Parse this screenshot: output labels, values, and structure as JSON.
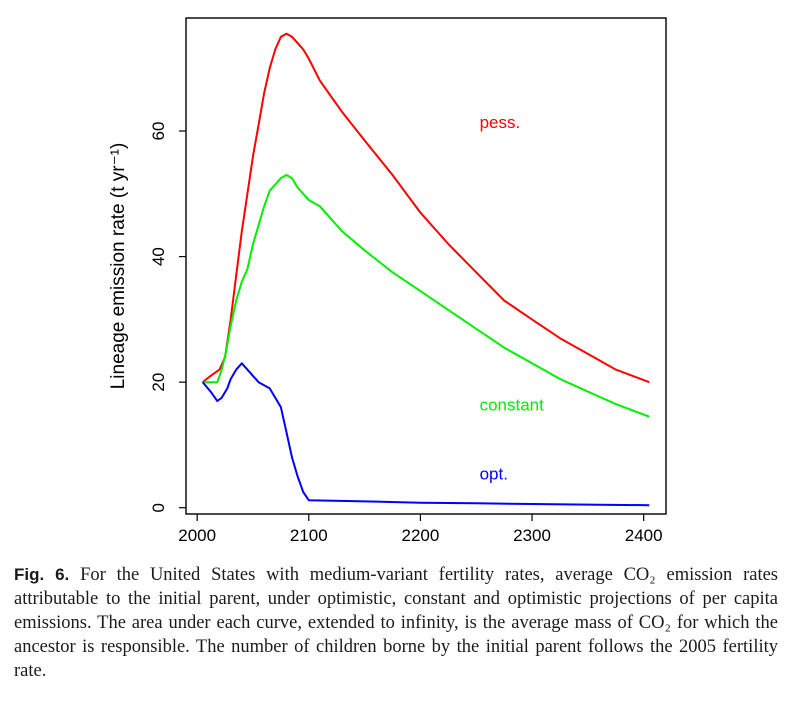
{
  "chart_data": {
    "type": "line",
    "ylabel": "Lineage emission rate (t yr⁻¹)",
    "xlabel": "",
    "xlim": [
      1990,
      2420
    ],
    "ylim": [
      -1,
      78
    ],
    "x_ticks": [
      "2000",
      "2100",
      "2200",
      "2300",
      "2400"
    ],
    "y_ticks": [
      "0",
      "20",
      "40",
      "60"
    ],
    "grid": false,
    "legend": "inline labels",
    "series": [
      {
        "name": "pess.",
        "color": "#ff0000",
        "x": [
          2005,
          2012,
          2020,
          2025,
          2030,
          2035,
          2040,
          2045,
          2050,
          2055,
          2060,
          2065,
          2070,
          2075,
          2080,
          2085,
          2090,
          2095,
          2100,
          2110,
          2120,
          2130,
          2150,
          2175,
          2200,
          2225,
          2250,
          2275,
          2300,
          2325,
          2350,
          2375,
          2405
        ],
        "y": [
          20,
          21,
          22,
          24,
          30,
          37,
          44,
          50,
          56,
          61,
          66,
          70,
          73,
          75,
          75.5,
          75,
          74,
          73,
          71.5,
          68,
          65.5,
          63,
          58.5,
          53,
          47,
          42,
          37.5,
          33,
          30,
          27,
          24.5,
          22,
          20
        ],
        "label_text": "pess.",
        "label_at": [
          2253,
          60.5
        ]
      },
      {
        "name": "constant",
        "color": "#00ee00",
        "x": [
          2005,
          2012,
          2018,
          2022,
          2026,
          2030,
          2035,
          2040,
          2045,
          2050,
          2055,
          2060,
          2065,
          2070,
          2075,
          2080,
          2085,
          2090,
          2095,
          2100,
          2110,
          2120,
          2130,
          2150,
          2175,
          2200,
          2225,
          2250,
          2275,
          2300,
          2325,
          2350,
          2375,
          2405
        ],
        "y": [
          20,
          20,
          20,
          22,
          25,
          29,
          33,
          36,
          38,
          42,
          45,
          48,
          50.5,
          51.5,
          52.5,
          53,
          52.5,
          51,
          50,
          49,
          48,
          46,
          44,
          41,
          37.5,
          34.5,
          31.5,
          28.5,
          25.5,
          23,
          20.5,
          18.5,
          16.5,
          14.5
        ],
        "label_text": "constant",
        "label_at": [
          2253,
          15.5
        ]
      },
      {
        "name": "opt.",
        "color": "#0000ff",
        "x": [
          2005,
          2012,
          2018,
          2022,
          2027,
          2030,
          2035,
          2040,
          2045,
          2050,
          2055,
          2060,
          2065,
          2070,
          2075,
          2080,
          2085,
          2090,
          2095,
          2100,
          2150,
          2200,
          2250,
          2300,
          2350,
          2405
        ],
        "y": [
          20,
          18.5,
          17,
          17.5,
          19,
          20.5,
          22,
          23,
          22,
          21,
          20,
          19.5,
          19,
          17.5,
          16,
          12,
          8,
          5,
          2.5,
          1.2,
          1,
          0.8,
          0.7,
          0.6,
          0.5,
          0.4
        ],
        "label_text": "opt.",
        "label_at": [
          2253,
          4.5
        ]
      }
    ]
  },
  "caption": {
    "label": "Fig. 6.",
    "text": "For the United States with medium-variant fertility rates, average CO₂ emission rates attributable to the initial parent, under optimistic, constant and optimistic projections of per capita emissions. The area under each curve, extended to infinity, is the average mass of CO₂ for which the ancestor is responsible. The number of children borne by the initial parent follows the 2005 fertility rate."
  }
}
